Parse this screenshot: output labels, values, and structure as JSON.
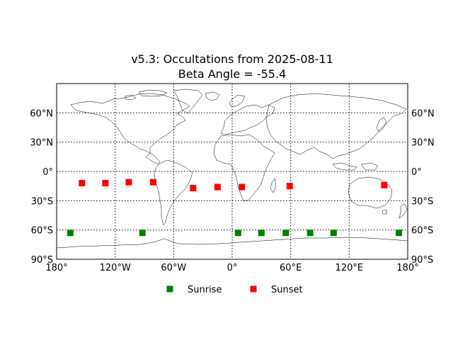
{
  "chart_data": {
    "type": "scatter",
    "title": "v5.3: Occultations from 2025-08-11",
    "subtitle": "Beta Angle = -55.4",
    "xlim": [
      -180,
      180
    ],
    "ylim": [
      -90,
      90
    ],
    "x_ticks": [
      {
        "value": -180,
        "label": "180°"
      },
      {
        "value": -120,
        "label": "120°W"
      },
      {
        "value": -60,
        "label": "60°W"
      },
      {
        "value": 0,
        "label": "0°"
      },
      {
        "value": 60,
        "label": "60°E"
      },
      {
        "value": 120,
        "label": "120°E"
      },
      {
        "value": 180,
        "label": "180°"
      }
    ],
    "y_ticks": [
      {
        "value": 60,
        "label": "60°N"
      },
      {
        "value": 30,
        "label": "30°N"
      },
      {
        "value": 0,
        "label": "0°"
      },
      {
        "value": -30,
        "label": "30°S"
      },
      {
        "value": -60,
        "label": "60°S"
      },
      {
        "value": -90,
        "label": "90°S"
      }
    ],
    "grid": true,
    "legend_position": "bottom-center",
    "series": [
      {
        "name": "Sunrise",
        "color": "#008000",
        "marker": "square",
        "points": [
          {
            "x": -166,
            "y": -63
          },
          {
            "x": -92,
            "y": -63
          },
          {
            "x": 6,
            "y": -63
          },
          {
            "x": 30,
            "y": -63
          },
          {
            "x": 55,
            "y": -63
          },
          {
            "x": 80,
            "y": -63
          },
          {
            "x": 104,
            "y": -63
          },
          {
            "x": 171,
            "y": -63
          }
        ]
      },
      {
        "name": "Sunset",
        "color": "#ff0000",
        "marker": "square",
        "points": [
          {
            "x": -154,
            "y": -12
          },
          {
            "x": -130,
            "y": -12
          },
          {
            "x": -106,
            "y": -11
          },
          {
            "x": -81,
            "y": -11
          },
          {
            "x": -40,
            "y": -17
          },
          {
            "x": -15,
            "y": -16
          },
          {
            "x": 10,
            "y": -16
          },
          {
            "x": 59,
            "y": -15
          },
          {
            "x": 156,
            "y": -14
          }
        ]
      }
    ]
  }
}
